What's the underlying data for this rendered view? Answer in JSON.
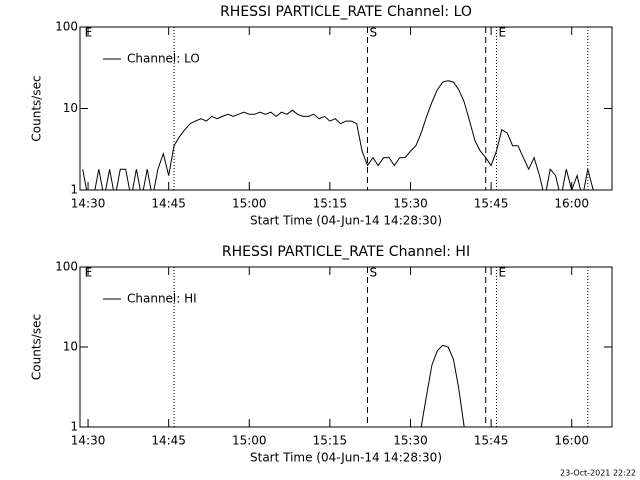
{
  "chart_data": [
    {
      "type": "line",
      "title": "RHESSI PARTICLE_RATE Channel: LO",
      "x_label": "Start Time (04-Jun-14 14:28:30)",
      "y_label": "Counts/sec",
      "xlim": [
        "14:28:30",
        "16:07:30"
      ],
      "xticks": [
        "14:30",
        "14:45",
        "15:00",
        "15:15",
        "15:30",
        "15:45",
        "16:00"
      ],
      "ylim": [
        1,
        100
      ],
      "yticks": [
        1,
        10,
        100
      ],
      "yscale": "log",
      "legend": "upper left",
      "x": [
        "14:29",
        "14:30",
        "14:31",
        "14:32",
        "14:33",
        "14:34",
        "14:35",
        "14:36",
        "14:37",
        "14:38",
        "14:39",
        "14:40",
        "14:41",
        "14:42",
        "14:43",
        "14:44",
        "14:45",
        "14:46",
        "14:47",
        "14:48",
        "14:49",
        "14:50",
        "14:51",
        "14:52",
        "14:53",
        "14:54",
        "14:55",
        "14:56",
        "14:57",
        "14:58",
        "14:59",
        "15:00",
        "15:01",
        "15:02",
        "15:03",
        "15:04",
        "15:05",
        "15:06",
        "15:07",
        "15:08",
        "15:09",
        "15:10",
        "15:11",
        "15:12",
        "15:13",
        "15:14",
        "15:15",
        "15:16",
        "15:17",
        "15:18",
        "15:19",
        "15:20",
        "15:21",
        "15:22",
        "15:23",
        "15:24",
        "15:25",
        "15:26",
        "15:27",
        "15:28",
        "15:29",
        "15:30",
        "15:31",
        "15:32",
        "15:33",
        "15:34",
        "15:35",
        "15:36",
        "15:37",
        "15:38",
        "15:39",
        "15:40",
        "15:41",
        "15:42",
        "15:43",
        "15:44",
        "15:45",
        "15:46",
        "15:47",
        "15:48",
        "15:49",
        "15:50",
        "15:51",
        "15:52",
        "15:53",
        "15:54",
        "15:55",
        "15:56",
        "15:57",
        "15:58",
        "15:59",
        "16:00",
        "16:01",
        "16:02",
        "16:03",
        "16:04",
        "16:05",
        "16:06"
      ],
      "series": [
        {
          "name": "Channel: LO",
          "color": "#000000",
          "values": [
            1.8,
            0.8,
            0.8,
            1.8,
            0.8,
            1.8,
            0.8,
            1.8,
            1.8,
            0.8,
            1.8,
            0.8,
            1.8,
            0.8,
            1.8,
            2.8,
            1.5,
            3.5,
            4.5,
            5.5,
            6.5,
            7,
            7.5,
            7,
            8,
            7.5,
            8,
            8.5,
            8,
            8.5,
            9,
            8.5,
            8.5,
            9,
            8.5,
            9,
            8,
            9,
            8.5,
            9.5,
            8.5,
            8,
            8,
            8.5,
            7.5,
            8,
            7,
            7.5,
            6.5,
            7,
            7,
            6.5,
            3,
            2,
            2.5,
            2,
            2.5,
            2.5,
            2,
            2.5,
            2.5,
            3,
            3.5,
            5,
            8,
            12,
            17,
            21,
            22,
            21,
            17,
            12,
            7,
            4,
            3,
            2.5,
            2,
            3,
            5.5,
            5,
            3.5,
            3.5,
            2.5,
            1.8,
            2.5,
            1.5,
            0.8,
            1.8,
            1.5,
            0.8,
            1.8,
            1,
            1.5,
            0.8,
            1.8,
            1,
            0.8,
            0.8
          ]
        }
      ],
      "vlines": [
        {
          "x": "14:46",
          "style": "dotted"
        },
        {
          "x": "15:22",
          "style": "dashed"
        },
        {
          "x": "15:44",
          "style": "dashed"
        },
        {
          "x": "15:46",
          "style": "dotted"
        },
        {
          "x": "16:03",
          "style": "dotted"
        }
      ],
      "vline_labels": [
        {
          "x": "14:29",
          "label": "E"
        },
        {
          "x": "15:22",
          "label": "S"
        },
        {
          "x": "15:46",
          "label": "E"
        }
      ]
    },
    {
      "type": "line",
      "title": "RHESSI PARTICLE_RATE Channel: HI",
      "x_label": "Start Time (04-Jun-14 14:28:30)",
      "y_label": "Counts/sec",
      "xlim": [
        "14:28:30",
        "16:07:30"
      ],
      "xticks": [
        "14:30",
        "14:45",
        "15:00",
        "15:15",
        "15:30",
        "15:45",
        "16:00"
      ],
      "ylim": [
        1,
        100
      ],
      "yticks": [
        1,
        10,
        100
      ],
      "yscale": "log",
      "legend": "upper left",
      "x": [
        "15:32",
        "15:33",
        "15:34",
        "15:35",
        "15:36",
        "15:37",
        "15:38",
        "15:39",
        "15:40"
      ],
      "series": [
        {
          "name": "Channel: HI",
          "color": "#000000",
          "values": [
            1,
            2.5,
            6,
            9,
            10.5,
            10,
            7,
            3,
            1
          ]
        }
      ],
      "vlines": [
        {
          "x": "14:46",
          "style": "dotted"
        },
        {
          "x": "15:22",
          "style": "dashed"
        },
        {
          "x": "15:44",
          "style": "dashed"
        },
        {
          "x": "15:46",
          "style": "dotted"
        },
        {
          "x": "16:03",
          "style": "dotted"
        }
      ],
      "vline_labels": [
        {
          "x": "14:29",
          "label": "E"
        },
        {
          "x": "15:22",
          "label": "S"
        },
        {
          "x": "15:46",
          "label": "E"
        }
      ]
    }
  ],
  "footer": "23-Oct-2021 22:22"
}
